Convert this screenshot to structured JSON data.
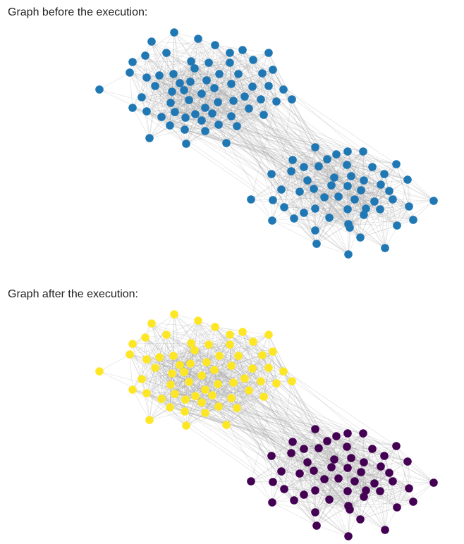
{
  "sections": {
    "before": {
      "title": "Graph before the execution:",
      "node_color": "#1f77b4",
      "edge_color": "#9e9e9e"
    },
    "after": {
      "title": "Graph after the execution:",
      "community_colors": [
        "#fde725",
        "#440154"
      ],
      "edge_color": "#9e9e9e"
    }
  }
}
